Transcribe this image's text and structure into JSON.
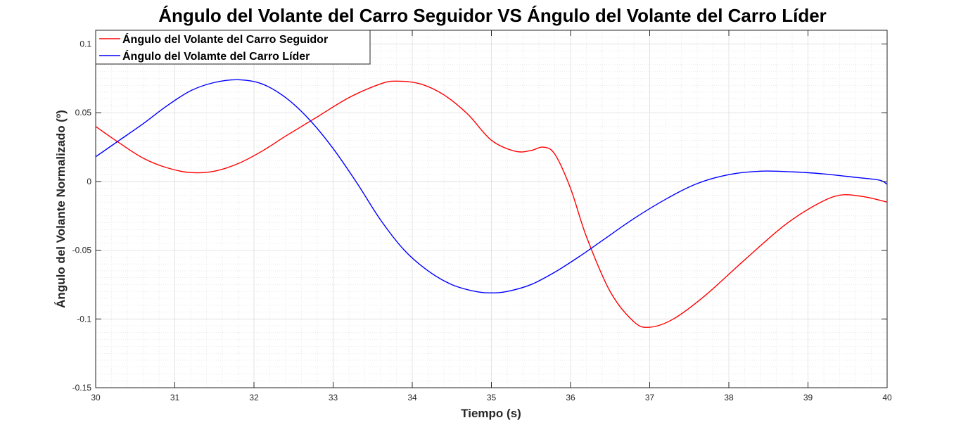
{
  "chart_data": {
    "type": "line",
    "title": "Ángulo del Volante del Carro Seguidor  VS Ángulo del Volante del Carro Líder",
    "xlabel": "Tiempo (s)",
    "ylabel": "Ángulo del Volante Normalizado (º)",
    "xlim": [
      30,
      40
    ],
    "ylim": [
      -0.15,
      0.11
    ],
    "xticks": [
      30,
      31,
      32,
      33,
      34,
      35,
      36,
      37,
      38,
      39,
      40
    ],
    "yticks": [
      -0.15,
      -0.1,
      -0.05,
      0,
      0.05,
      0.1
    ],
    "xtick_labels": [
      "30",
      "31",
      "32",
      "33",
      "34",
      "35",
      "36",
      "37",
      "38",
      "39",
      "40"
    ],
    "ytick_labels": [
      "-0.15",
      "-0.1",
      "-0.05",
      "0",
      "0.05",
      "0.1"
    ],
    "grid": "major and minor (dotted)",
    "legend_position": "top-left",
    "series": [
      {
        "name": "Ángulo del Volante del Carro Seguidor",
        "color": "#ff0000",
        "x": [
          30.0,
          30.3,
          30.6,
          30.9,
          31.2,
          31.5,
          31.8,
          32.1,
          32.4,
          32.8,
          33.2,
          33.6,
          33.8,
          34.1,
          34.4,
          34.7,
          35.0,
          35.3,
          35.5,
          35.65,
          35.8,
          36.0,
          36.2,
          36.5,
          36.8,
          37.0,
          37.3,
          37.7,
          38.2,
          38.7,
          39.1,
          39.4,
          39.7,
          40.0
        ],
        "y": [
          0.04,
          0.028,
          0.017,
          0.01,
          0.0065,
          0.0075,
          0.013,
          0.022,
          0.033,
          0.047,
          0.061,
          0.071,
          0.073,
          0.071,
          0.063,
          0.049,
          0.03,
          0.022,
          0.0225,
          0.025,
          0.02,
          -0.005,
          -0.04,
          -0.08,
          -0.102,
          -0.106,
          -0.1,
          -0.083,
          -0.057,
          -0.032,
          -0.017,
          -0.01,
          -0.011,
          -0.015
        ]
      },
      {
        "name": "Ángulo del Volamte del Carro Líder",
        "color": "#0000ff",
        "x": [
          30.0,
          30.3,
          30.6,
          30.9,
          31.2,
          31.5,
          31.8,
          32.1,
          32.4,
          32.7,
          33.0,
          33.3,
          33.6,
          33.9,
          34.2,
          34.5,
          34.8,
          35.0,
          35.2,
          35.5,
          35.8,
          36.1,
          36.4,
          36.8,
          37.2,
          37.6,
          38.0,
          38.4,
          38.8,
          39.2,
          39.6,
          39.9,
          40.0
        ],
        "y": [
          0.018,
          0.03,
          0.042,
          0.055,
          0.066,
          0.072,
          0.074,
          0.071,
          0.061,
          0.045,
          0.024,
          -0.001,
          -0.028,
          -0.05,
          -0.065,
          -0.075,
          -0.08,
          -0.081,
          -0.08,
          -0.075,
          -0.066,
          -0.055,
          -0.043,
          -0.027,
          -0.013,
          -0.0015,
          0.005,
          0.0075,
          0.007,
          0.0055,
          0.003,
          0.001,
          -0.002
        ]
      }
    ]
  }
}
